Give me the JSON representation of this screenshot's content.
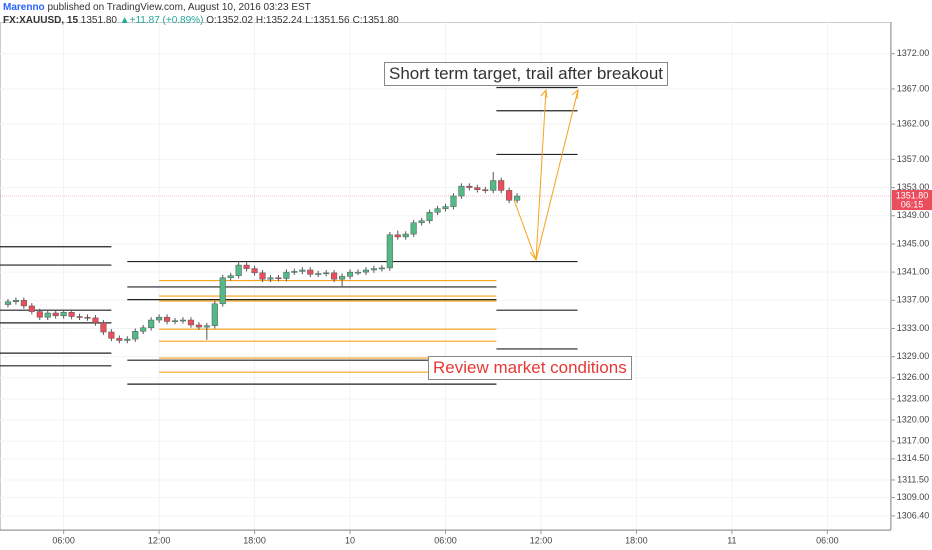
{
  "header": {
    "author": "Marenno",
    "published": "published on TradingView.com, August 10, 2016 03:23 EST",
    "symbol": "FX:XAUUSD, 15",
    "last": "1351.80",
    "change": "+11.87 (+0.89%)",
    "ohlc": [
      {
        "label": "O:",
        "value": "1352.02"
      },
      {
        "label": "H:",
        "value": "1352.24"
      },
      {
        "label": "L:",
        "value": "1351.56"
      },
      {
        "label": "C:",
        "value": "1351.80"
      }
    ]
  },
  "chart_data": {
    "type": "candlestick",
    "x": [
      2.5,
      3,
      3.5,
      4,
      4.5,
      5,
      5.5,
      6,
      6.5,
      7,
      7.5,
      8,
      8.5,
      9,
      9.5,
      10,
      10.5,
      11,
      11.5,
      12,
      12.5,
      13,
      13.5,
      14,
      14.5,
      15,
      15.5,
      16,
      16.5,
      17,
      17.5,
      18,
      18.5,
      19,
      19.5,
      20,
      20.5,
      21,
      21.5,
      22,
      22.5,
      23,
      23.5,
      24,
      24.5,
      25,
      25.5,
      26,
      26.5,
      27,
      27.5,
      28,
      28.5,
      29,
      29.5,
      30,
      30.5,
      31,
      31.5,
      32,
      32.5,
      33,
      33.5,
      34,
      34.5
    ],
    "open": [
      1336.4,
      1336.8,
      1337.0,
      1336.2,
      1335.4,
      1334.6,
      1335.2,
      1334.8,
      1335.3,
      1334.7,
      1334.6,
      1334.5,
      1333.8,
      1332.5,
      1331.6,
      1331.3,
      1331.5,
      1332.6,
      1333.1,
      1334.2,
      1334.6,
      1334.0,
      1334.1,
      1334.2,
      1333.5,
      1333.2,
      1333.4,
      1336.5,
      1340.2,
      1340.5,
      1342.0,
      1341.5,
      1340.9,
      1340.0,
      1340.2,
      1340.1,
      1341.0,
      1341.1,
      1341.3,
      1340.7,
      1340.8,
      1340.9,
      1340.0,
      1340.4,
      1341.0,
      1341.0,
      1341.3,
      1341.5,
      1341.6,
      1346.3,
      1346.0,
      1346.4,
      1348.0,
      1348.3,
      1349.5,
      1350.0,
      1350.3,
      1351.8,
      1353.2,
      1353.0,
      1352.7,
      1352.6,
      1354.0,
      1352.6,
      1351.2
    ],
    "high": [
      1337.2,
      1337.4,
      1337.4,
      1336.6,
      1335.8,
      1335.6,
      1335.6,
      1335.7,
      1335.7,
      1335.1,
      1335.0,
      1334.9,
      1334.2,
      1332.9,
      1332.0,
      1331.9,
      1333.0,
      1333.5,
      1334.6,
      1335.0,
      1335.0,
      1334.5,
      1334.6,
      1334.6,
      1333.9,
      1333.8,
      1336.9,
      1340.6,
      1340.9,
      1342.6,
      1342.4,
      1341.9,
      1341.3,
      1340.6,
      1340.6,
      1341.4,
      1341.5,
      1341.7,
      1341.7,
      1341.2,
      1341.3,
      1341.3,
      1340.8,
      1341.4,
      1341.4,
      1341.7,
      1341.9,
      1342.0,
      1346.7,
      1346.9,
      1346.8,
      1348.4,
      1348.7,
      1349.9,
      1350.4,
      1350.7,
      1352.2,
      1353.6,
      1353.6,
      1353.4,
      1353.1,
      1355.2,
      1354.4,
      1353.0,
      1352.2
    ],
    "low": [
      1336.0,
      1336.4,
      1335.8,
      1335.0,
      1334.2,
      1334.2,
      1334.4,
      1334.4,
      1334.3,
      1334.2,
      1334.1,
      1333.4,
      1332.1,
      1331.2,
      1330.9,
      1330.9,
      1331.1,
      1332.2,
      1332.7,
      1333.8,
      1333.6,
      1333.6,
      1333.7,
      1333.1,
      1332.8,
      1331.4,
      1333.0,
      1336.1,
      1339.8,
      1340.1,
      1341.1,
      1340.5,
      1339.6,
      1339.6,
      1339.7,
      1339.7,
      1340.6,
      1340.7,
      1340.3,
      1340.3,
      1340.4,
      1339.6,
      1338.9,
      1340.0,
      1340.6,
      1340.6,
      1340.9,
      1341.1,
      1341.2,
      1345.6,
      1345.6,
      1346.0,
      1347.6,
      1347.9,
      1349.1,
      1349.6,
      1349.9,
      1351.4,
      1352.6,
      1352.3,
      1352.2,
      1352.2,
      1352.2,
      1350.8,
      1350.8
    ],
    "close": [
      1336.8,
      1337.0,
      1336.2,
      1335.4,
      1334.6,
      1335.2,
      1334.8,
      1335.3,
      1334.7,
      1334.6,
      1334.5,
      1333.8,
      1332.5,
      1331.6,
      1331.3,
      1331.5,
      1332.6,
      1333.1,
      1334.2,
      1334.6,
      1334.0,
      1334.1,
      1334.2,
      1333.5,
      1333.2,
      1333.4,
      1336.5,
      1340.2,
      1340.5,
      1342.0,
      1341.5,
      1340.9,
      1340.0,
      1340.2,
      1340.1,
      1341.0,
      1341.1,
      1341.3,
      1340.7,
      1340.8,
      1340.9,
      1340.0,
      1340.4,
      1341.0,
      1341.0,
      1341.3,
      1341.5,
      1341.6,
      1346.3,
      1346.0,
      1346.4,
      1348.0,
      1348.3,
      1349.5,
      1350.0,
      1350.3,
      1351.8,
      1353.2,
      1353.0,
      1352.7,
      1352.6,
      1354.0,
      1352.6,
      1351.2,
      1351.8
    ],
    "up_color": "#53b987",
    "down_color": "#eb4d5c",
    "xlim": [
      2,
      58
    ],
    "xticks": [
      {
        "value": 6,
        "label": "06:00"
      },
      {
        "value": 12,
        "label": "12:00"
      },
      {
        "value": 18,
        "label": "18:00"
      },
      {
        "value": 24,
        "label": "10"
      },
      {
        "value": 30,
        "label": "06:00"
      },
      {
        "value": 36,
        "label": "12:00"
      },
      {
        "value": 42,
        "label": "18:00"
      },
      {
        "value": 48,
        "label": "11"
      },
      {
        "value": 54,
        "label": "06:00"
      }
    ],
    "ylim": [
      1304.4,
      1376.5
    ],
    "yticks": [
      {
        "value": 1306.4,
        "label": "1306.40"
      },
      {
        "value": 1309,
        "label": "1309.00"
      },
      {
        "value": 1311.5,
        "label": "1311.50"
      },
      {
        "value": 1314.5,
        "label": "1314.50"
      },
      {
        "value": 1317,
        "label": "1317.00"
      },
      {
        "value": 1320,
        "label": "1320.00"
      },
      {
        "value": 1323,
        "label": "1323.00"
      },
      {
        "value": 1326,
        "label": "1326.00"
      },
      {
        "value": 1329,
        "label": "1329.00"
      },
      {
        "value": 1333,
        "label": "1333.00"
      },
      {
        "value": 1337,
        "label": "1337.00"
      },
      {
        "value": 1341,
        "label": "1341.00"
      },
      {
        "value": 1345,
        "label": "1345.00"
      },
      {
        "value": 1349,
        "label": "1349.00"
      },
      {
        "value": 1353,
        "label": "1353.00"
      },
      {
        "value": 1357,
        "label": "1357.00"
      },
      {
        "value": 1362,
        "label": "1362.00"
      },
      {
        "value": 1367,
        "label": "1367.00"
      },
      {
        "value": 1372,
        "label": "1372.00"
      }
    ],
    "grid": true,
    "last_price": {
      "value": 1351.8,
      "label": "1351.80"
    },
    "countdown": "06:15",
    "last_color": "#eb4d5c",
    "levels": [
      {
        "y": 1344.6,
        "x": [
          2,
          9
        ],
        "color": "#222"
      },
      {
        "y": 1342.0,
        "x": [
          2,
          9
        ],
        "color": "#222"
      },
      {
        "y": 1335.6,
        "x": [
          2,
          9
        ],
        "color": "#222"
      },
      {
        "y": 1333.8,
        "x": [
          2,
          9
        ],
        "color": "#222"
      },
      {
        "y": 1329.5,
        "x": [
          2,
          9
        ],
        "color": "#222"
      },
      {
        "y": 1327.7,
        "x": [
          2,
          9
        ],
        "color": "#222"
      },
      {
        "y": 1342.5,
        "x": [
          10,
          33.2
        ],
        "color": "#222"
      },
      {
        "y": 1338.9,
        "x": [
          10,
          33.2
        ],
        "color": "#222"
      },
      {
        "y": 1337.1,
        "x": [
          10,
          33.2
        ],
        "color": "#222"
      },
      {
        "y": 1328.5,
        "x": [
          10,
          33.2
        ],
        "color": "#222"
      },
      {
        "y": 1325.1,
        "x": [
          10,
          33.2
        ],
        "color": "#222"
      },
      {
        "y": 1339.8,
        "x": [
          12,
          33.2
        ],
        "color": "#f7a21b"
      },
      {
        "y": 1337.6,
        "x": [
          12,
          33.2
        ],
        "color": "#f7a21b"
      },
      {
        "y": 1336.9,
        "x": [
          12,
          33.2
        ],
        "color": "#f7a21b"
      },
      {
        "y": 1332.9,
        "x": [
          12,
          33.2
        ],
        "color": "#f7a21b"
      },
      {
        "y": 1331.2,
        "x": [
          12,
          33.2
        ],
        "color": "#f7a21b"
      },
      {
        "y": 1328.8,
        "x": [
          12,
          33.2
        ],
        "color": "#f7a21b"
      },
      {
        "y": 1326.8,
        "x": [
          12,
          33.2
        ],
        "color": "#f7a21b"
      },
      {
        "y": 1367.2,
        "x": [
          33.2,
          38.3
        ],
        "color": "#222"
      },
      {
        "y": 1363.9,
        "x": [
          33.2,
          38.3
        ],
        "color": "#222"
      },
      {
        "y": 1357.7,
        "x": [
          33.2,
          38.3
        ],
        "color": "#222"
      },
      {
        "y": 1342.5,
        "x": [
          33.2,
          38.3
        ],
        "color": "#222"
      },
      {
        "y": 1335.6,
        "x": [
          33.2,
          38.3
        ],
        "color": "#222"
      },
      {
        "y": 1330.1,
        "x": [
          33.2,
          38.3
        ],
        "color": "#222"
      }
    ],
    "annotations": [
      "Short term target, trail after breakout",
      "Review market conditions"
    ]
  }
}
